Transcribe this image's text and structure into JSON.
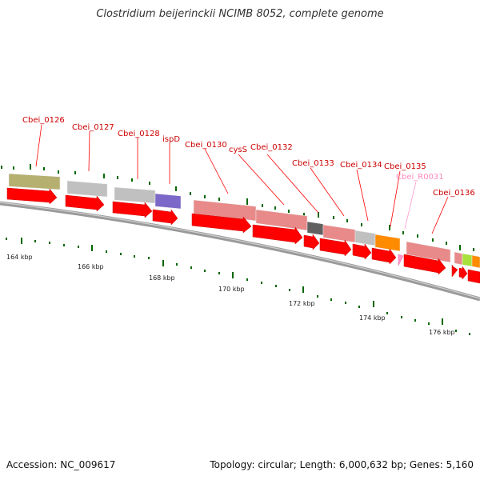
{
  "title": "Clostridium beijerinckii NCIMB 8052, complete genome",
  "footer": {
    "accession": "Accession: NC_009617",
    "summary": "Topology: circular; Length: 6,000,632 bp; Genes: 5,160"
  },
  "colors": {
    "backbone": "#8a8a8a",
    "arrow": "#ff0000",
    "arrow_light": "#ff99cc",
    "label": "#cc0000",
    "label_rna": "#ff88bb",
    "tick": "#006600"
  },
  "genes": [
    {
      "label": "Cbei_0126",
      "rna": false
    },
    {
      "label": "Cbei_0127",
      "rna": false
    },
    {
      "label": "Cbei_0128",
      "rna": false
    },
    {
      "label": "ispD",
      "rna": false
    },
    {
      "label": "Cbei_0130",
      "rna": false
    },
    {
      "label": "cysS",
      "rna": false
    },
    {
      "label": "Cbei_0132",
      "rna": false
    },
    {
      "label": "Cbei_0133",
      "rna": false
    },
    {
      "label": "Cbei_0134",
      "rna": false
    },
    {
      "label": "Cbei_0135",
      "rna": false
    },
    {
      "label": "Cbei_R0031",
      "rna": true
    },
    {
      "label": "Cbei_0136",
      "rna": false
    }
  ],
  "scale_labels": [
    "164 kbp",
    "166 kbp",
    "168 kbp",
    "170 kbp",
    "172 kbp",
    "174 kbp",
    "176 kbp"
  ]
}
